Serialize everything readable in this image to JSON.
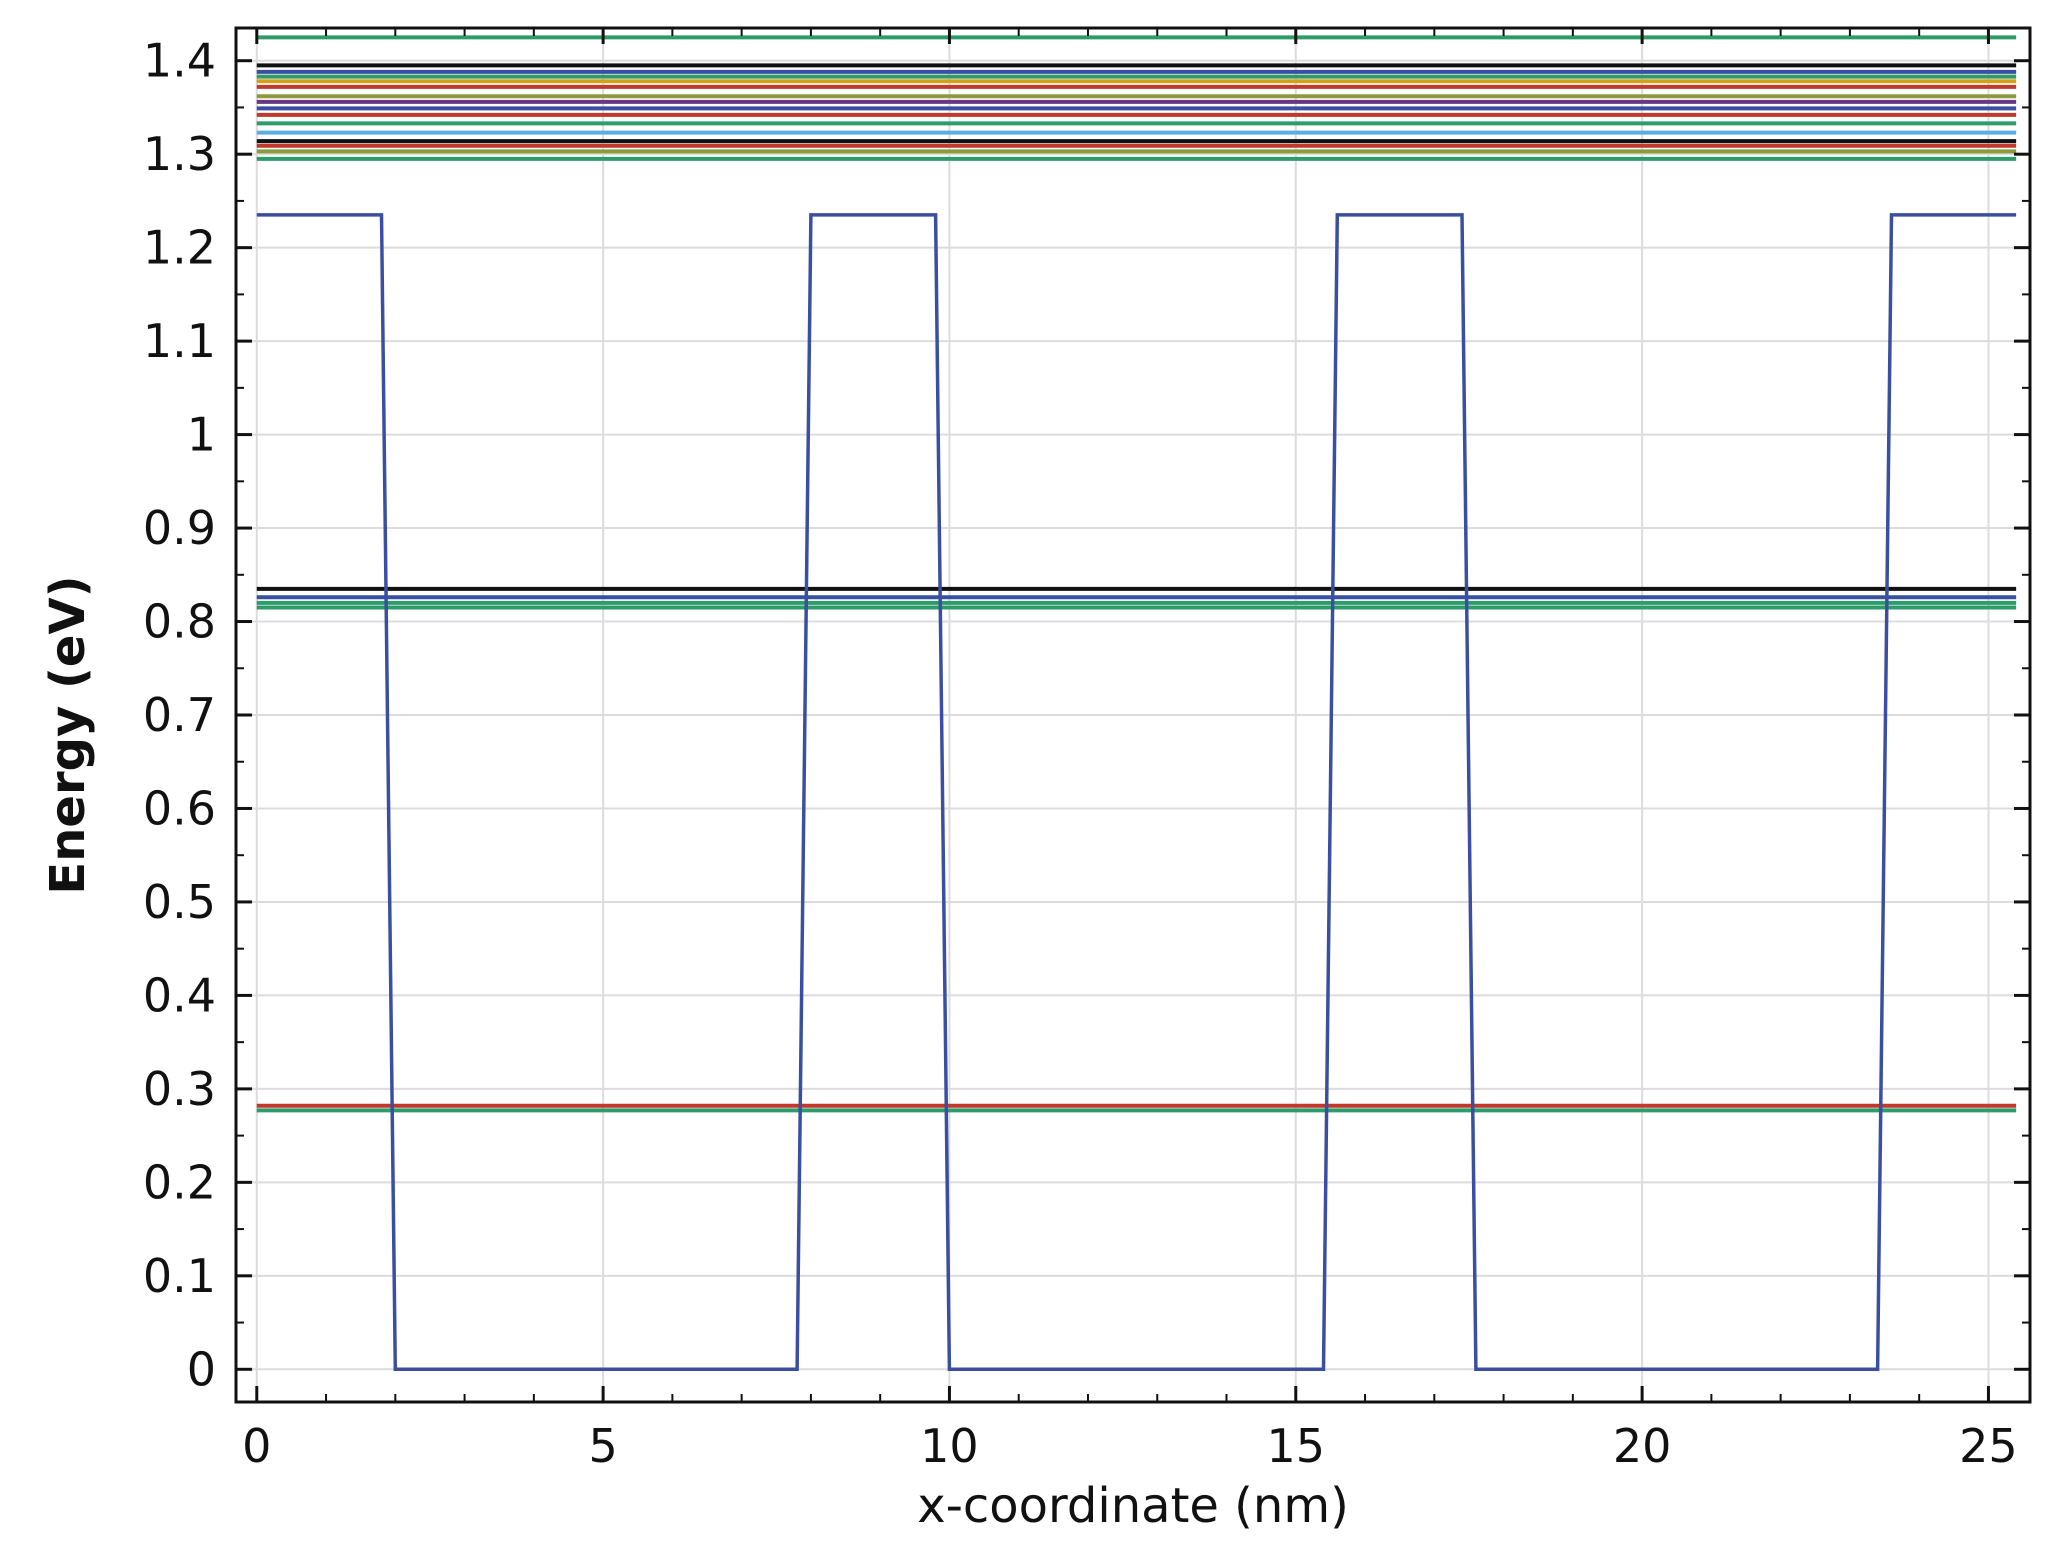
{
  "chart_data": {
    "type": "line",
    "xlabel": "x-coordinate (nm)",
    "ylabel": "Energy (eV)",
    "xlim": [
      -0.3,
      25.6
    ],
    "ylim": [
      -0.035,
      1.435
    ],
    "xticks": [
      0,
      5,
      10,
      15,
      20,
      25
    ],
    "yticks": [
      0,
      0.1,
      0.2,
      0.3,
      0.4,
      0.5,
      0.6,
      0.7,
      0.8,
      0.9,
      1,
      1.1,
      1.2,
      1.3,
      1.4
    ],
    "ytick_labels": [
      "0",
      "0.1",
      "0.2",
      "0.3",
      "0.4",
      "0.5",
      "0.6",
      "0.7",
      "0.8",
      "0.9",
      "1",
      "1.1",
      "1.2",
      "1.3",
      "1.4"
    ],
    "grid": true,
    "potential": {
      "color": "#3a4fa0",
      "x": [
        0,
        1.8,
        2.0,
        7.8,
        8.0,
        9.8,
        10.0,
        15.4,
        15.6,
        17.4,
        17.6,
        23.4,
        23.6,
        25.4
      ],
      "y": [
        1.235,
        1.235,
        0,
        0,
        1.235,
        1.235,
        0,
        0,
        1.235,
        1.235,
        0,
        0,
        1.235,
        1.235
      ]
    },
    "levels": {
      "x_range": [
        0,
        25.4
      ],
      "series": [
        {
          "energy": 1.425,
          "color": "#2e9b6a"
        },
        {
          "energy": 1.395,
          "color": "#111111"
        },
        {
          "energy": 1.388,
          "color": "#3a4fa0"
        },
        {
          "energy": 1.383,
          "color": "#2e9b6a"
        },
        {
          "energy": 1.378,
          "color": "#d4a017"
        },
        {
          "energy": 1.372,
          "color": "#c0392b"
        },
        {
          "energy": 1.362,
          "color": "#8b9a3a"
        },
        {
          "energy": 1.356,
          "color": "#6c3483"
        },
        {
          "energy": 1.349,
          "color": "#3a4fa0"
        },
        {
          "energy": 1.342,
          "color": "#c0392b"
        },
        {
          "energy": 1.333,
          "color": "#2e9b6a"
        },
        {
          "energy": 1.323,
          "color": "#5dade2"
        },
        {
          "energy": 1.314,
          "color": "#111111"
        },
        {
          "energy": 1.309,
          "color": "#c0392b"
        },
        {
          "energy": 1.303,
          "color": "#8b9a3a"
        },
        {
          "energy": 1.295,
          "color": "#2e9b6a"
        },
        {
          "energy": 0.835,
          "color": "#111111"
        },
        {
          "energy": 0.826,
          "color": "#3a4fa0"
        },
        {
          "energy": 0.82,
          "color": "#2e9b6a"
        },
        {
          "energy": 0.815,
          "color": "#2e9b6a"
        },
        {
          "energy": 0.282,
          "color": "#c0392b"
        },
        {
          "energy": 0.277,
          "color": "#2e9b6a"
        }
      ]
    }
  }
}
